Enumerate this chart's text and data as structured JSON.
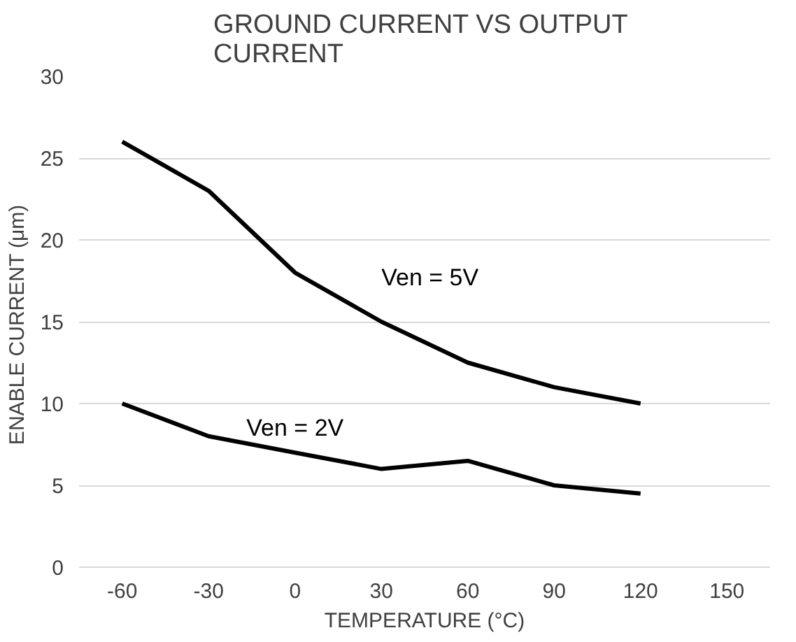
{
  "chart_data": {
    "type": "line",
    "title": "GROUND CURRENT  VS OUTPUT CURRENT",
    "xlabel": "TEMPERATURE (°C)",
    "ylabel": "ENABLE CURRENT  (μm)",
    "categories": [
      "-60",
      "-30",
      "0",
      "30",
      "60",
      "90",
      "120",
      "150"
    ],
    "series": [
      {
        "name": "Ven = 5V",
        "color": "#000000",
        "values": [
          26,
          23,
          18,
          15,
          12.5,
          11,
          10,
          null
        ]
      },
      {
        "name": "Ven = 2V",
        "color": "#000000",
        "values": [
          10,
          8,
          7,
          6,
          6.5,
          5,
          4.5,
          null
        ]
      }
    ],
    "ylim": [
      0,
      30
    ],
    "yticks": [
      0,
      5,
      10,
      15,
      20,
      25,
      30
    ],
    "grid": "y"
  }
}
